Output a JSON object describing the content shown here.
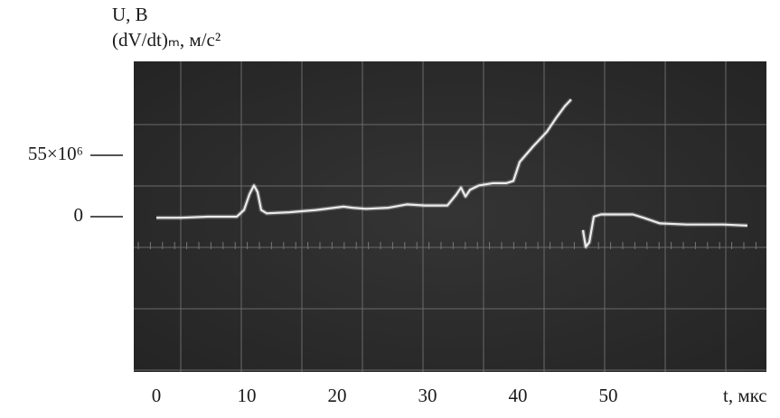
{
  "chart_data": {
    "type": "line",
    "y_label_1": "U, В",
    "y_label_2": "(dV/dt)ₘ, м/с²",
    "x_label": "t, мкс",
    "x": [
      0,
      2.7,
      5.7,
      8.9,
      9.7,
      10.3,
      10.8,
      11.2,
      11.6,
      12.2,
      14.7,
      17.7,
      20.7,
      21.7,
      23.2,
      25.7,
      27.7,
      29.7,
      32.2,
      33.2,
      33.7,
      34.2,
      34.7,
      35.7,
      37.2,
      38.7,
      39.5,
      40.2,
      41.7,
      43.2,
      44.2,
      45.2,
      45.9,
      46.5,
      47.2,
      47.5,
      47.9,
      48.4,
      49.2,
      52.7,
      53.9,
      55.7,
      58.7,
      62.7,
      65.4
    ],
    "values": [
      -1000000,
      -1000000,
      0,
      0,
      6000000,
      20000000,
      28000000,
      22000000,
      6000000,
      3000000,
      4000000,
      6000000,
      9000000,
      8000000,
      7000000,
      8000000,
      11000000,
      10000000,
      10000000,
      20000000,
      26000000,
      18000000,
      24000000,
      28000000,
      30000000,
      30000000,
      32000000,
      49000000,
      63000000,
      76000000,
      88000000,
      99000000,
      105000000,
      null,
      -12000000,
      -27000000,
      -23000000,
      0,
      2000000,
      2000000,
      -1000000,
      -6000000,
      -7000000,
      -7000000,
      -8000000
    ],
    "color": "#ececec",
    "background": "#2c2c2c",
    "xlim": [
      -2.5,
      67.5
    ],
    "ylim": [
      -139000000,
      139000000
    ],
    "xticks": [
      0,
      10,
      20,
      30,
      40,
      50
    ],
    "yticks": [
      0,
      {
        "value": 55000000,
        "label": "55×10⁶"
      }
    ]
  }
}
